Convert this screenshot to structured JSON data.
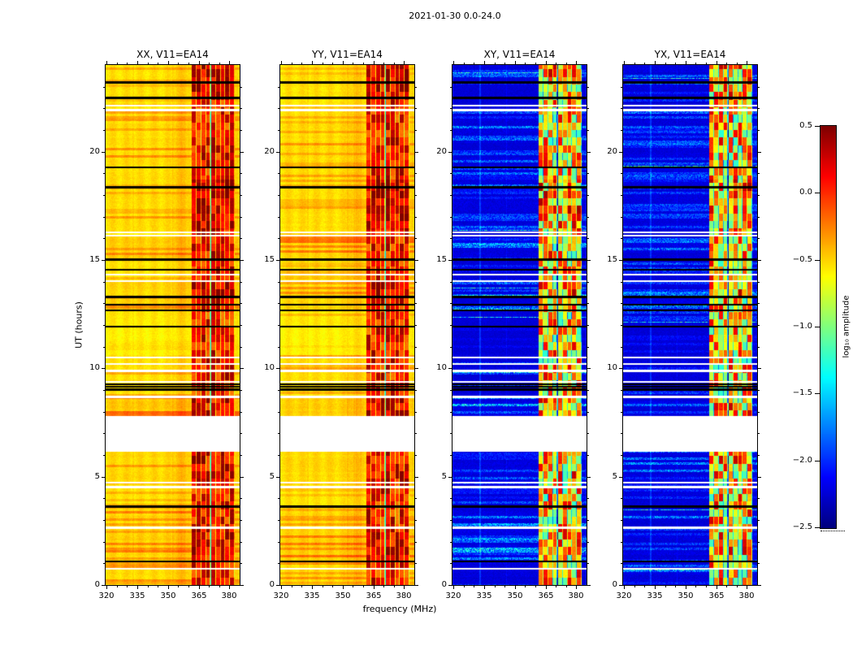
{
  "chart_data": {
    "type": "heatmap",
    "title": "2021-01-30 0.0-24.0",
    "panels": [
      {
        "title": "XX, V11=EA14",
        "kind": "parallel",
        "seed": 11
      },
      {
        "title": "YY, V11=EA14",
        "kind": "parallel",
        "seed": 23
      },
      {
        "title": "XY, V11=EA14",
        "kind": "cross",
        "seed": 37
      },
      {
        "title": "YX, V11=EA14",
        "kind": "cross",
        "seed": 51
      }
    ],
    "x": {
      "label": "frequency (MHz)",
      "min": 319.5,
      "max": 385,
      "tick_values": [
        320,
        335,
        350,
        365,
        380
      ],
      "tick_labels": [
        "320",
        "335",
        "350",
        "365",
        "380"
      ],
      "minor_tick_values": [
        325,
        330,
        340,
        345,
        355,
        360,
        370,
        375
      ]
    },
    "y": {
      "label": "UT (hours)",
      "min": 0,
      "max": 24,
      "tick_values": [
        0,
        5,
        10,
        15,
        20
      ],
      "tick_labels": [
        "0",
        "5",
        "10",
        "15",
        "20"
      ],
      "minor_step": 1
    },
    "value_range": [
      -2.5,
      0.5
    ],
    "colorbar": {
      "label": "log₁₀ amplitude",
      "tick_values": [
        0.5,
        0,
        -0.5,
        -1,
        -1.5,
        -2,
        -2.5
      ],
      "tick_labels": [
        "0.5",
        "0.0",
        "−0.5",
        "−1.0",
        "−1.5",
        "−2.0",
        "−2.5"
      ],
      "vmin": -2.5,
      "vmax": 0.5,
      "colormap": "jet"
    },
    "parallel_base": -0.62,
    "cross_base": -2.3,
    "rfi_band": {
      "f_start": 361.5,
      "f_end": 382.5,
      "subchannel_width": 2.33,
      "gap_freq": 370.7
    },
    "white_gaps": [
      [
        6.15,
        7.8
      ],
      [
        8.62,
        8.75
      ],
      [
        9.32,
        9.4
      ],
      [
        9.82,
        9.92
      ],
      [
        10.15,
        10.25
      ],
      [
        10.45,
        10.55
      ],
      [
        13.98,
        14.08
      ],
      [
        14.28,
        14.38
      ],
      [
        16.08,
        16.18
      ],
      [
        16.22,
        16.3
      ],
      [
        21.88,
        21.97
      ],
      [
        22.08,
        22.16
      ],
      [
        2.6,
        2.7
      ],
      [
        4.47,
        4.56
      ],
      [
        4.7,
        4.78
      ],
      [
        0.7,
        0.77
      ]
    ],
    "black_lines": [
      1.08,
      3.62,
      9.02,
      9.14,
      9.26,
      11.93,
      12.68,
      12.93,
      13.3,
      14.55,
      15.02,
      18.35,
      19.28,
      22.48,
      23.2
    ],
    "activity_segments": [
      [
        0,
        1.08,
        0.65
      ],
      [
        1.08,
        2.6,
        0.85
      ],
      [
        2.7,
        3.6,
        0.75
      ],
      [
        3.6,
        4.47,
        0.45
      ],
      [
        4.56,
        4.7,
        0.5
      ],
      [
        4.78,
        6.15,
        0.7
      ],
      [
        7.8,
        8.62,
        0.95
      ],
      [
        8.75,
        9.32,
        0.5
      ],
      [
        9.4,
        10.6,
        0.55
      ],
      [
        10.6,
        11.93,
        0.18
      ],
      [
        11.93,
        12.68,
        0.4
      ],
      [
        12.68,
        13.98,
        0.75
      ],
      [
        14.08,
        14.28,
        0.4
      ],
      [
        14.38,
        15.02,
        0.5
      ],
      [
        15.02,
        16.08,
        0.85
      ],
      [
        16.3,
        19.28,
        0.6
      ],
      [
        19.28,
        21.88,
        0.65
      ],
      [
        21.97,
        22.08,
        0.4
      ],
      [
        22.16,
        22.48,
        0.45
      ],
      [
        22.48,
        24.0,
        0.55
      ]
    ],
    "band_boost_segments": [
      [
        1.08,
        2.6,
        0.08
      ],
      [
        4.78,
        6.15,
        0.08
      ],
      [
        7.8,
        8.62,
        0.12
      ],
      [
        13.3,
        14.0,
        0.25
      ],
      [
        16.4,
        18.7,
        0.18
      ],
      [
        22.4,
        24.0,
        0.12
      ]
    ]
  }
}
